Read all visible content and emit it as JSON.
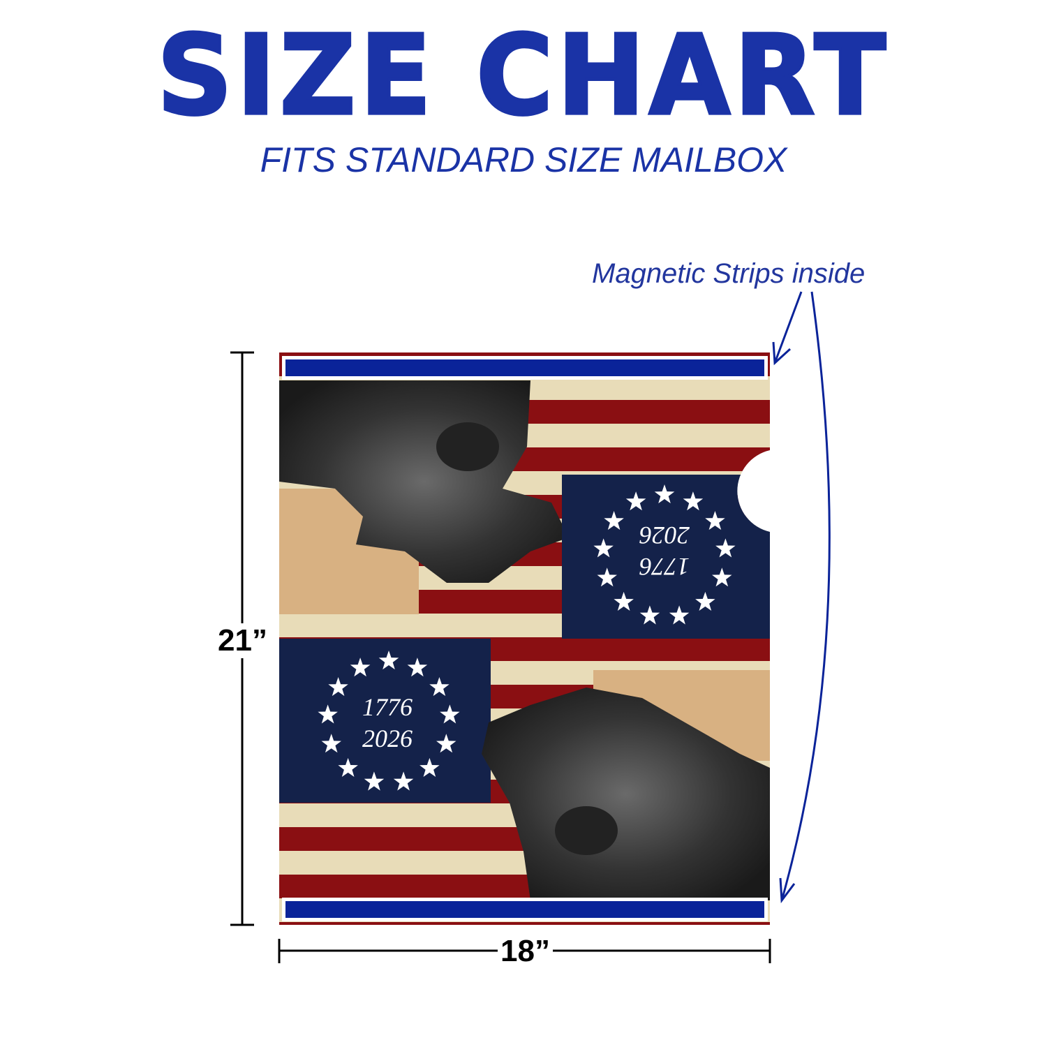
{
  "title": "SIZE CHART",
  "subtitle": "FITS STANDARD SIZE MAILBOX",
  "annotation": "Magnetic Strips inside",
  "dimensions": {
    "height": "21”",
    "width": "18”"
  },
  "design": {
    "canton_top_text": [
      "1776",
      "2026"
    ],
    "canton_bottom_text": [
      "1776",
      "2026"
    ],
    "star_count": 13
  },
  "colors": {
    "title": "#1a33a6",
    "strip": "#0a2399",
    "navy": "#14224a",
    "red": "#8a0f12",
    "cream": "#e8dcb8",
    "tan": "#d8b182"
  }
}
